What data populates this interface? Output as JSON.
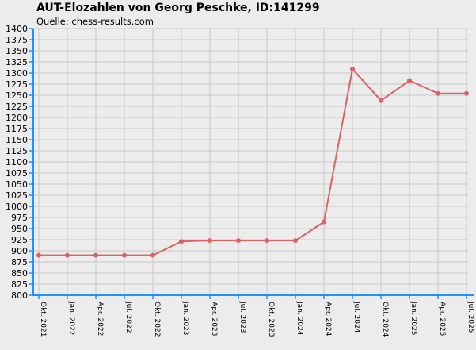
{
  "chart_data": {
    "type": "line",
    "title": "AUT-Elozahlen von Georg Peschke, ID:141299",
    "subtitle": "Quelle: chess-results.com",
    "xlabel": "",
    "ylabel": "",
    "categories": [
      "Okt. 2021",
      "Jan. 2022",
      "Apr. 2022",
      "Jul. 2022",
      "Okt. 2022",
      "Jan. 2023",
      "Apr. 2023",
      "Jul. 2023",
      "Okt. 2023",
      "Jan. 2024",
      "Apr. 2024",
      "Jul. 2024",
      "Okt. 2024",
      "Jan. 2025",
      "Apr. 2025",
      "Jul. 2025"
    ],
    "series": [
      {
        "values": [
          890,
          890,
          890,
          890,
          890,
          921,
          923,
          923,
          923,
          923,
          965,
          1309,
          1238,
          1283,
          1254,
          1254
        ]
      }
    ],
    "ylim": [
      800,
      1400
    ],
    "ytick_step": 25,
    "grid": true,
    "legend": "none",
    "colors": {
      "line": "#d96262",
      "axis": "#1e90ff",
      "grid": "#c9c9c9",
      "plot_background": "#ececec"
    }
  }
}
